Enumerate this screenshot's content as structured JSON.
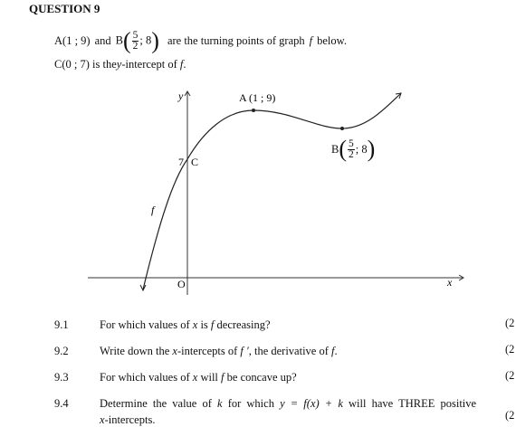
{
  "heading": "QUESTION 9",
  "intro": {
    "line1": [
      "A(1 ; 9)",
      "and",
      "B",
      "5",
      "2",
      "; 8",
      "are the turning points of graph",
      "f",
      "below."
    ],
    "line2": [
      "C(0 ; 7)",
      "is the",
      "y",
      "-intercept of",
      "f",
      "."
    ]
  },
  "graph": {
    "y_axis_label": "y",
    "x_axis_label": "x",
    "origin_label": "O",
    "c_value_label": "7",
    "c_label": "C",
    "a_label": "A (1 ; 9)",
    "b_label": [
      "B",
      "5",
      "2",
      "; 8"
    ],
    "curve_label": "f"
  },
  "questions": [
    {
      "number": "9.1",
      "text": [
        "For which values of",
        "x",
        "is",
        "f",
        "decreasing?"
      ],
      "marks": "(2"
    },
    {
      "number": "9.2",
      "text": [
        "Write down the",
        "x",
        "-intercepts of",
        "f ′",
        ", the derivative of",
        "f",
        "."
      ],
      "marks": "(2"
    },
    {
      "number": "9.3",
      "text": [
        "For which values of",
        "x",
        "will",
        "f",
        "be concave up?"
      ],
      "marks": "(2"
    },
    {
      "number": "9.4",
      "text": [
        "Determine the value of",
        "k",
        "for which",
        "y = f(x) + k",
        "will have THREE positive",
        "x",
        "-intercepts."
      ],
      "marks": "(2"
    }
  ]
}
